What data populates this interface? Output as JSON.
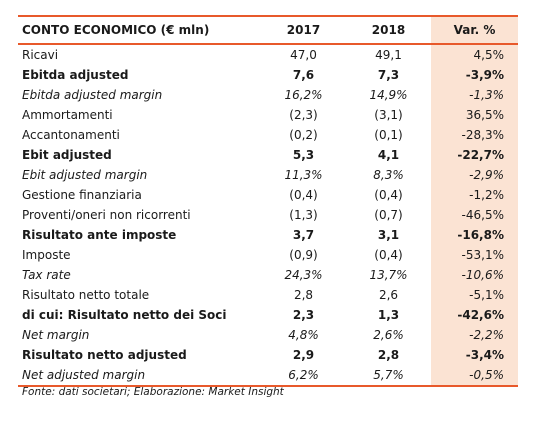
{
  "table": {
    "headers": {
      "label": "CONTO ECONOMICO (€ mln)",
      "y2017": "2017",
      "y2018": "2018",
      "var": "Var. %"
    },
    "rows": [
      {
        "label": "Ricavi",
        "y2017": "47,0",
        "y2018": "49,1",
        "var": "4,5%",
        "style": "normal"
      },
      {
        "label": "Ebitda adjusted",
        "y2017": "7,6",
        "y2018": "7,3",
        "var": "-3,9%",
        "style": "bold"
      },
      {
        "label": "Ebitda adjusted margin",
        "y2017": "16,2%",
        "y2018": "14,9%",
        "var": "-1,3%",
        "style": "italic"
      },
      {
        "label": "Ammortamenti",
        "y2017": "(2,3)",
        "y2018": "(3,1)",
        "var": "36,5%",
        "style": "normal"
      },
      {
        "label": "Accantonamenti",
        "y2017": "(0,2)",
        "y2018": "(0,1)",
        "var": "-28,3%",
        "style": "normal"
      },
      {
        "label": "Ebit adjusted",
        "y2017": "5,3",
        "y2018": "4,1",
        "var": "-22,7%",
        "style": "bold"
      },
      {
        "label": "Ebit adjusted margin",
        "y2017": "11,3%",
        "y2018": "8,3%",
        "var": "-2,9%",
        "style": "italic"
      },
      {
        "label": "Gestione finanziaria",
        "y2017": "(0,4)",
        "y2018": "(0,4)",
        "var": "-1,2%",
        "style": "normal"
      },
      {
        "label": "Proventi/oneri non ricorrenti",
        "y2017": "(1,3)",
        "y2018": "(0,7)",
        "var": "-46,5%",
        "style": "normal"
      },
      {
        "label": "Risultato ante imposte",
        "y2017": "3,7",
        "y2018": "3,1",
        "var": "-16,8%",
        "style": "bold"
      },
      {
        "label": "Imposte",
        "y2017": "(0,9)",
        "y2018": "(0,4)",
        "var": "-53,1%",
        "style": "normal"
      },
      {
        "label": "Tax rate",
        "y2017": "24,3%",
        "y2018": "13,7%",
        "var": "-10,6%",
        "style": "italic"
      },
      {
        "label": "Risultato netto totale",
        "y2017": "2,8",
        "y2018": "2,6",
        "var": "-5,1%",
        "style": "normal"
      },
      {
        "label": "di cui: Risultato netto dei Soci",
        "y2017": "2,3",
        "y2018": "1,3",
        "var": "-42,6%",
        "style": "bold"
      },
      {
        "label": "Net margin",
        "y2017": "4,8%",
        "y2018": "2,6%",
        "var": "-2,2%",
        "style": "italic"
      },
      {
        "label": "Risultato netto adjusted",
        "y2017": "2,9",
        "y2018": "2,8",
        "var": "-3,4%",
        "style": "bold"
      },
      {
        "label": "Net adjusted margin",
        "y2017": "6,2%",
        "y2018": "5,7%",
        "var": "-0,5%",
        "style": "italic"
      }
    ]
  },
  "source": "Fonte: dati societari; Elaborazione: Market Insight",
  "colors": {
    "rule": "#e8592b",
    "var_column_bg": "#fbe3d3"
  }
}
